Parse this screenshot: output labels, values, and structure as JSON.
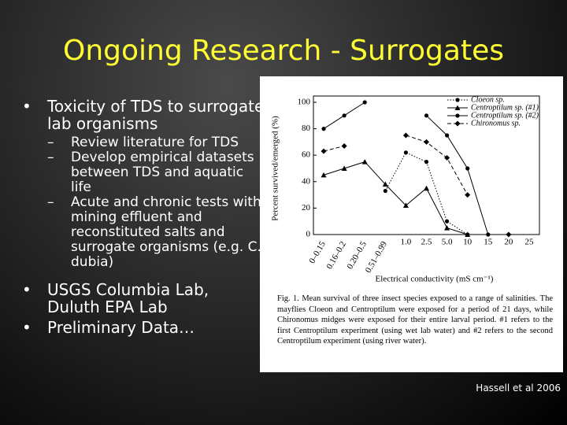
{
  "title": "Ongoing Research - Surrogates",
  "bullets": [
    {
      "text": "Toxicity of TDS to surrogate lab organisms",
      "sub": [
        "Review literature for TDS",
        "Develop empirical datasets between TDS and aquatic life",
        "Acute and chronic tests with mining effluent and reconstituted salts and surrogate organisms (e.g. C. dubia)"
      ]
    },
    {
      "text": "USGS Columbia Lab, Duluth EPA Lab",
      "sub": []
    },
    {
      "text": "Preliminary Data…",
      "sub": []
    }
  ],
  "credit": "Hassell et al 2006",
  "chart_data": {
    "type": "line",
    "x_label": "Electrical conductivity (mS cm⁻¹)",
    "y_label": "Percent survived/emerged (%)",
    "categories": [
      "0–0.15",
      "0.16–0.2",
      "0.20–0.5",
      "0.51–0.99",
      "1.0",
      "2.5",
      "5.0",
      "10",
      "15",
      "20",
      "25"
    ],
    "ylim": [
      0,
      100
    ],
    "yticks": [
      0,
      20,
      40,
      60,
      80,
      100
    ],
    "legend": "top-right",
    "series": [
      {
        "name": "Cloeon sp.",
        "color": "#000000",
        "dash": "dotted",
        "marker": "circle",
        "values": [
          null,
          null,
          null,
          33,
          62,
          55,
          10,
          0,
          null,
          null,
          null
        ]
      },
      {
        "name": "Centroptilum sp. (#1)",
        "color": "#000000",
        "dash": "solid",
        "marker": "triangle",
        "values": [
          45,
          50,
          55,
          38,
          22,
          35,
          5,
          0,
          null,
          null,
          null
        ]
      },
      {
        "name": "Centroptilum sp. (#2)",
        "color": "#000000",
        "dash": "solid",
        "marker": "circle",
        "values": [
          80,
          90,
          100,
          null,
          null,
          90,
          75,
          50,
          0,
          null,
          null
        ]
      },
      {
        "name": "Chironomus sp.",
        "color": "#000000",
        "dash": "dashed",
        "marker": "diamond",
        "values": [
          63,
          67,
          null,
          null,
          75,
          70,
          58,
          30,
          null,
          0,
          null
        ]
      }
    ],
    "caption": "Fig. 1. Mean survival of three insect species exposed to a range of salinities. The mayflies Cloeon and Centroptilum were exposed for a period of 21 days, while Chironomus midges were exposed for their entire larval period. #1 refers to the first Centroptilum experiment (using wet lab water) and #2 refers to the second Centroptilum experiment (using river water)."
  }
}
